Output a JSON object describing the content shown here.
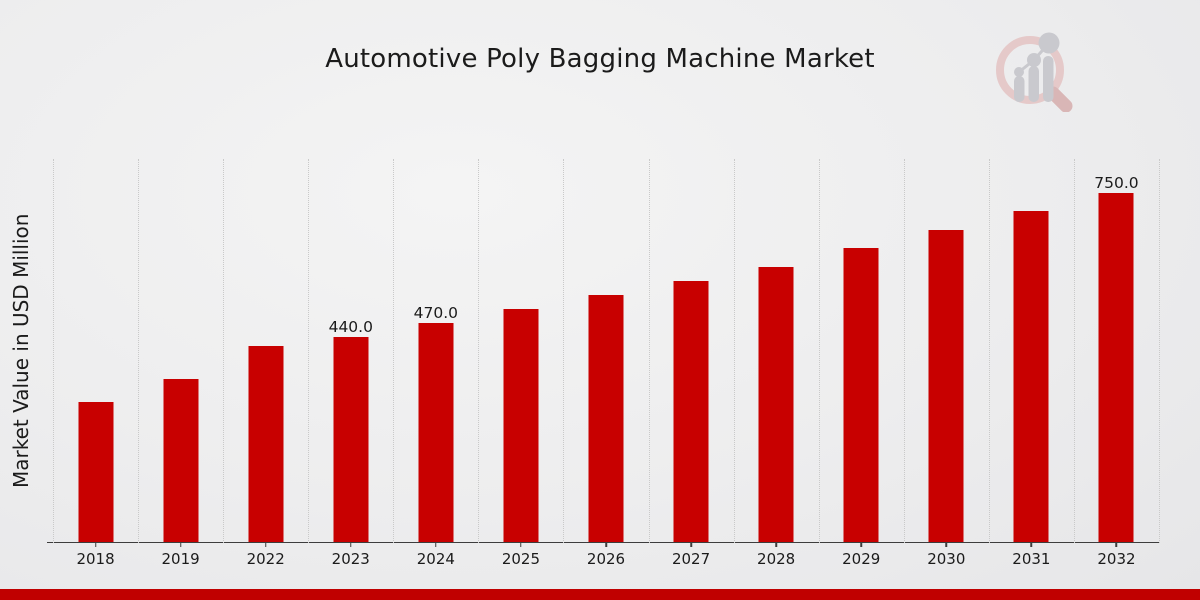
{
  "page": {
    "background_top": "#f4f4f4",
    "background_bottom": "#e6e6e8"
  },
  "branding": {
    "logo_name": "market-research-watermark-magnifier-bar-chart",
    "stripe_color": "#c00000",
    "logo_ring_color": "#e5c9c9",
    "logo_handle_color": "#d9b6b6",
    "logo_bars_color": "#c9c9ce"
  },
  "chart_data": {
    "type": "bar",
    "title": "Automotive Poly Bagging Machine Market",
    "xlabel": "",
    "ylabel": "Market Value in USD Million",
    "categories": [
      "2018",
      "2019",
      "2022",
      "2023",
      "2024",
      "2025",
      "2026",
      "2027",
      "2028",
      "2029",
      "2030",
      "2031",
      "2032"
    ],
    "values": [
      300,
      350,
      420,
      440,
      470,
      500,
      530,
      560,
      590,
      630,
      670,
      710,
      750
    ],
    "value_labels": [
      "",
      "",
      "",
      "440.0",
      "470.0",
      "",
      "",
      "",
      "",
      "",
      "",
      "",
      "750.0"
    ],
    "bar_color": "#c80000",
    "ylim": [
      0,
      824
    ],
    "grid": "vertical-dotted",
    "gridline_color": "#c9c9c9",
    "axis_color": "#3d3d3d",
    "text_color": "#1b1b1b",
    "legend": "none"
  }
}
